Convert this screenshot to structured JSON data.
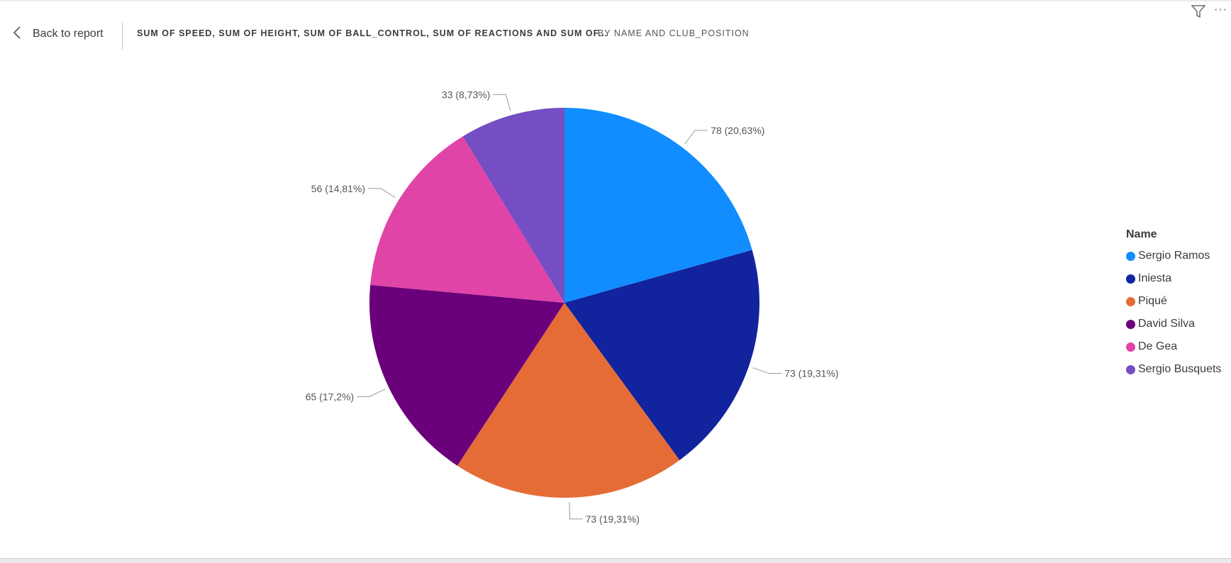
{
  "header": {
    "back_label": "Back to report",
    "title": "SUM OF SPEED, SUM OF HEIGHT, SUM OF BALL_CONTROL, SUM OF REACTIONS AND SUM OF...",
    "subtitle": "BY NAME AND CLUB_POSITION"
  },
  "icons": [
    "chevron-left-icon",
    "filter-icon",
    "more-options-icon"
  ],
  "legend": {
    "title": "Name"
  },
  "chart_data": {
    "type": "pie",
    "title": "",
    "slices": [
      {
        "name": "Sergio Ramos",
        "value": 78,
        "label": "78 (20,63%)",
        "color": "#118DFF"
      },
      {
        "name": "Iniesta",
        "value": 73,
        "label": "73 (19,31%)",
        "color": "#12239E"
      },
      {
        "name": "Piqué",
        "value": 73,
        "label": "73 (19,31%)",
        "color": "#E66C37"
      },
      {
        "name": "David Silva",
        "value": 65,
        "label": "65 (17,2%)",
        "color": "#6B007B"
      },
      {
        "name": "De Gea",
        "value": 56,
        "label": "56 (14,81%)",
        "color": "#E044A7"
      },
      {
        "name": "Sergio Busquets",
        "value": 33,
        "label": "33 (8,73%)",
        "color": "#744EC2"
      }
    ],
    "legend_position": "right"
  }
}
